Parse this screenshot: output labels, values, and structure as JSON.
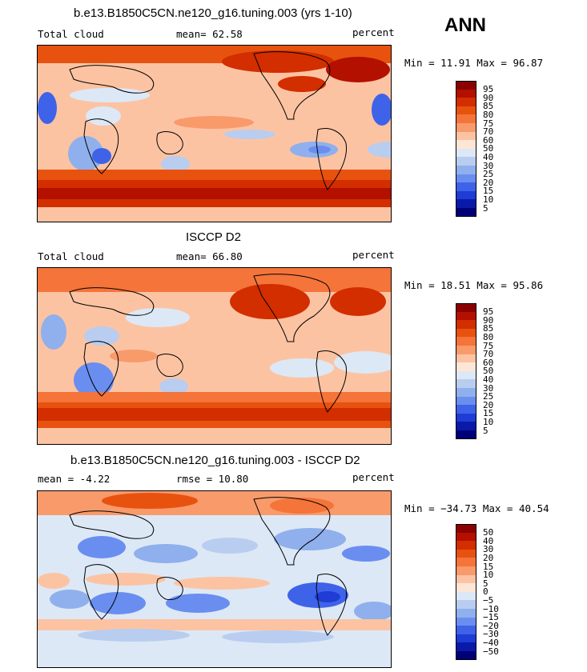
{
  "season": "ANN",
  "panels": [
    {
      "title": "b.e13.B1850C5CN.ne120_g16.tuning.003 (yrs 1-10)",
      "left_label": "Total cloud",
      "center_label": "mean=  62.58",
      "right_label": "percent",
      "minmax": "Min =  11.91 Max =  96.87"
    },
    {
      "title": "ISCCP D2",
      "left_label": "Total cloud",
      "center_label": "mean=  66.80",
      "right_label": "percent",
      "minmax": "Min =  18.51 Max =  95.86"
    },
    {
      "title": "b.e13.B1850C5CN.ne120_g16.tuning.003 - ISCCP D2",
      "left_label": "mean =  -4.22",
      "center_label": "rmse =  10.80",
      "right_label": "percent",
      "minmax": "Min = −34.73 Max =  40.54"
    }
  ],
  "colorbars": {
    "abs": {
      "ticks": [
        "95",
        "90",
        "85",
        "80",
        "75",
        "70",
        "60",
        "50",
        "40",
        "30",
        "25",
        "20",
        "15",
        "10",
        "5"
      ],
      "colors": [
        "#8b0000",
        "#b31000",
        "#d22e00",
        "#e8520f",
        "#f4743a",
        "#f99a6b",
        "#fcc3a3",
        "#fde6d6",
        "#dde8f6",
        "#b8cdf0",
        "#8fb0ec",
        "#6a8ef0",
        "#3e63e8",
        "#1f3cd4",
        "#0a1aa8",
        "#000078"
      ]
    },
    "diff": {
      "ticks": [
        "50",
        "40",
        "30",
        "20",
        "15",
        "10",
        "5",
        "0",
        "−5",
        "−10",
        "−15",
        "−20",
        "−30",
        "−40",
        "−50"
      ],
      "colors": [
        "#8b0000",
        "#b31000",
        "#d22e00",
        "#e8520f",
        "#f4743a",
        "#f99a6b",
        "#fcc3a3",
        "#fde6d6",
        "#dde8f6",
        "#b8cdf0",
        "#8fb0ec",
        "#6a8ef0",
        "#3e63e8",
        "#1f3cd4",
        "#0a1aa8",
        "#000078"
      ]
    }
  },
  "chart_data": [
    {
      "type": "heatmap",
      "title": "b.e13.B1850C5CN.ne120_g16.tuning.003 (yrs 1-10)",
      "variable": "Total cloud",
      "units": "percent",
      "mean": 62.58,
      "min": 11.91,
      "max": 96.87,
      "contour_levels": [
        5,
        10,
        15,
        20,
        25,
        30,
        40,
        50,
        60,
        70,
        75,
        80,
        85,
        90,
        95
      ]
    },
    {
      "type": "heatmap",
      "title": "ISCCP D2",
      "variable": "Total cloud",
      "units": "percent",
      "mean": 66.8,
      "min": 18.51,
      "max": 95.86,
      "contour_levels": [
        5,
        10,
        15,
        20,
        25,
        30,
        40,
        50,
        60,
        70,
        75,
        80,
        85,
        90,
        95
      ]
    },
    {
      "type": "heatmap",
      "title": "b.e13.B1850C5CN.ne120_g16.tuning.003 - ISCCP D2",
      "units": "percent",
      "mean": -4.22,
      "rmse": 10.8,
      "min": -34.73,
      "max": 40.54,
      "contour_levels": [
        -50,
        -40,
        -30,
        -20,
        -15,
        -10,
        -5,
        0,
        5,
        10,
        15,
        20,
        30,
        40,
        50
      ]
    }
  ]
}
